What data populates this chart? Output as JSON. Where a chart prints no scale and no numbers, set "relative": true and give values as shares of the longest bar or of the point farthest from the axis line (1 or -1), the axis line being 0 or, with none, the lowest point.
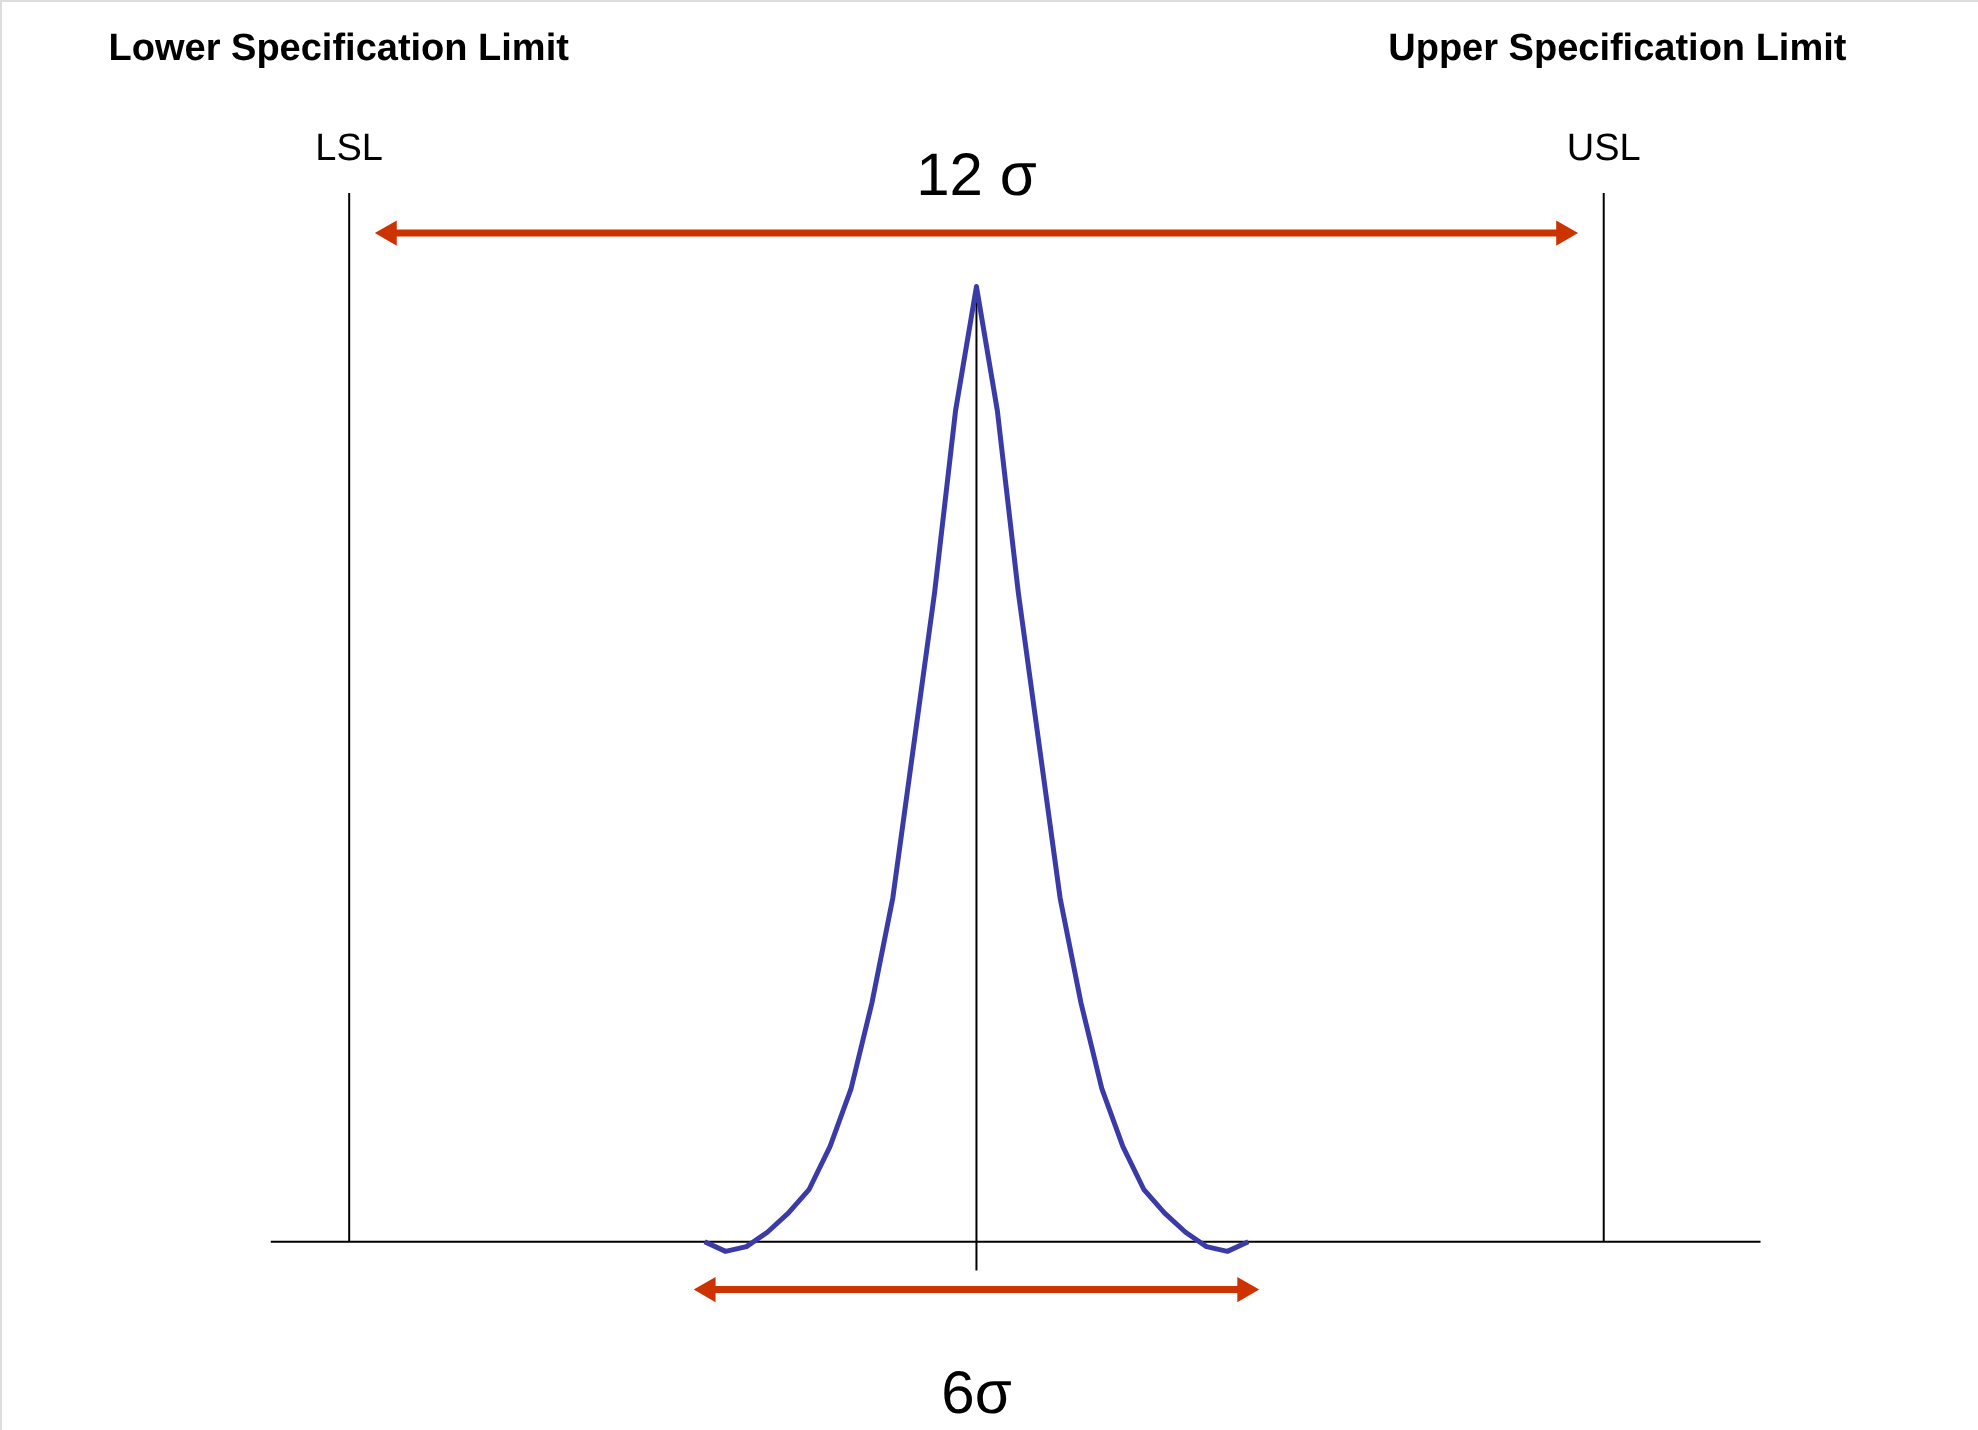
{
  "chart_data": {
    "type": "line",
    "relative": true,
    "marker": "none",
    "line_style": "solid",
    "categories": [
      null,
      null,
      null,
      null,
      null,
      null,
      null,
      null,
      null,
      null,
      null,
      null,
      null,
      null,
      null,
      null,
      null,
      null,
      null,
      null,
      null,
      null,
      null,
      null,
      null,
      null,
      null
    ],
    "series": [
      {
        "color": "#3b3ba8",
        "values": [
          0,
          -0.01,
          -0.005,
          0.01,
          0.03,
          0.055,
          0.1,
          0.16,
          0.25,
          0.36,
          0.52,
          0.68,
          0.87,
          1,
          0.87,
          0.68,
          0.52,
          0.36,
          0.25,
          0.16,
          0.1,
          0.055,
          0.03,
          0.01,
          -0.005,
          -0.01,
          0
        ]
      }
    ],
    "annotations": [
      "Lower Specification Limit",
      "Upper Specification Limit",
      "LSL",
      "USL",
      "12 σ",
      "6σ"
    ]
  }
}
